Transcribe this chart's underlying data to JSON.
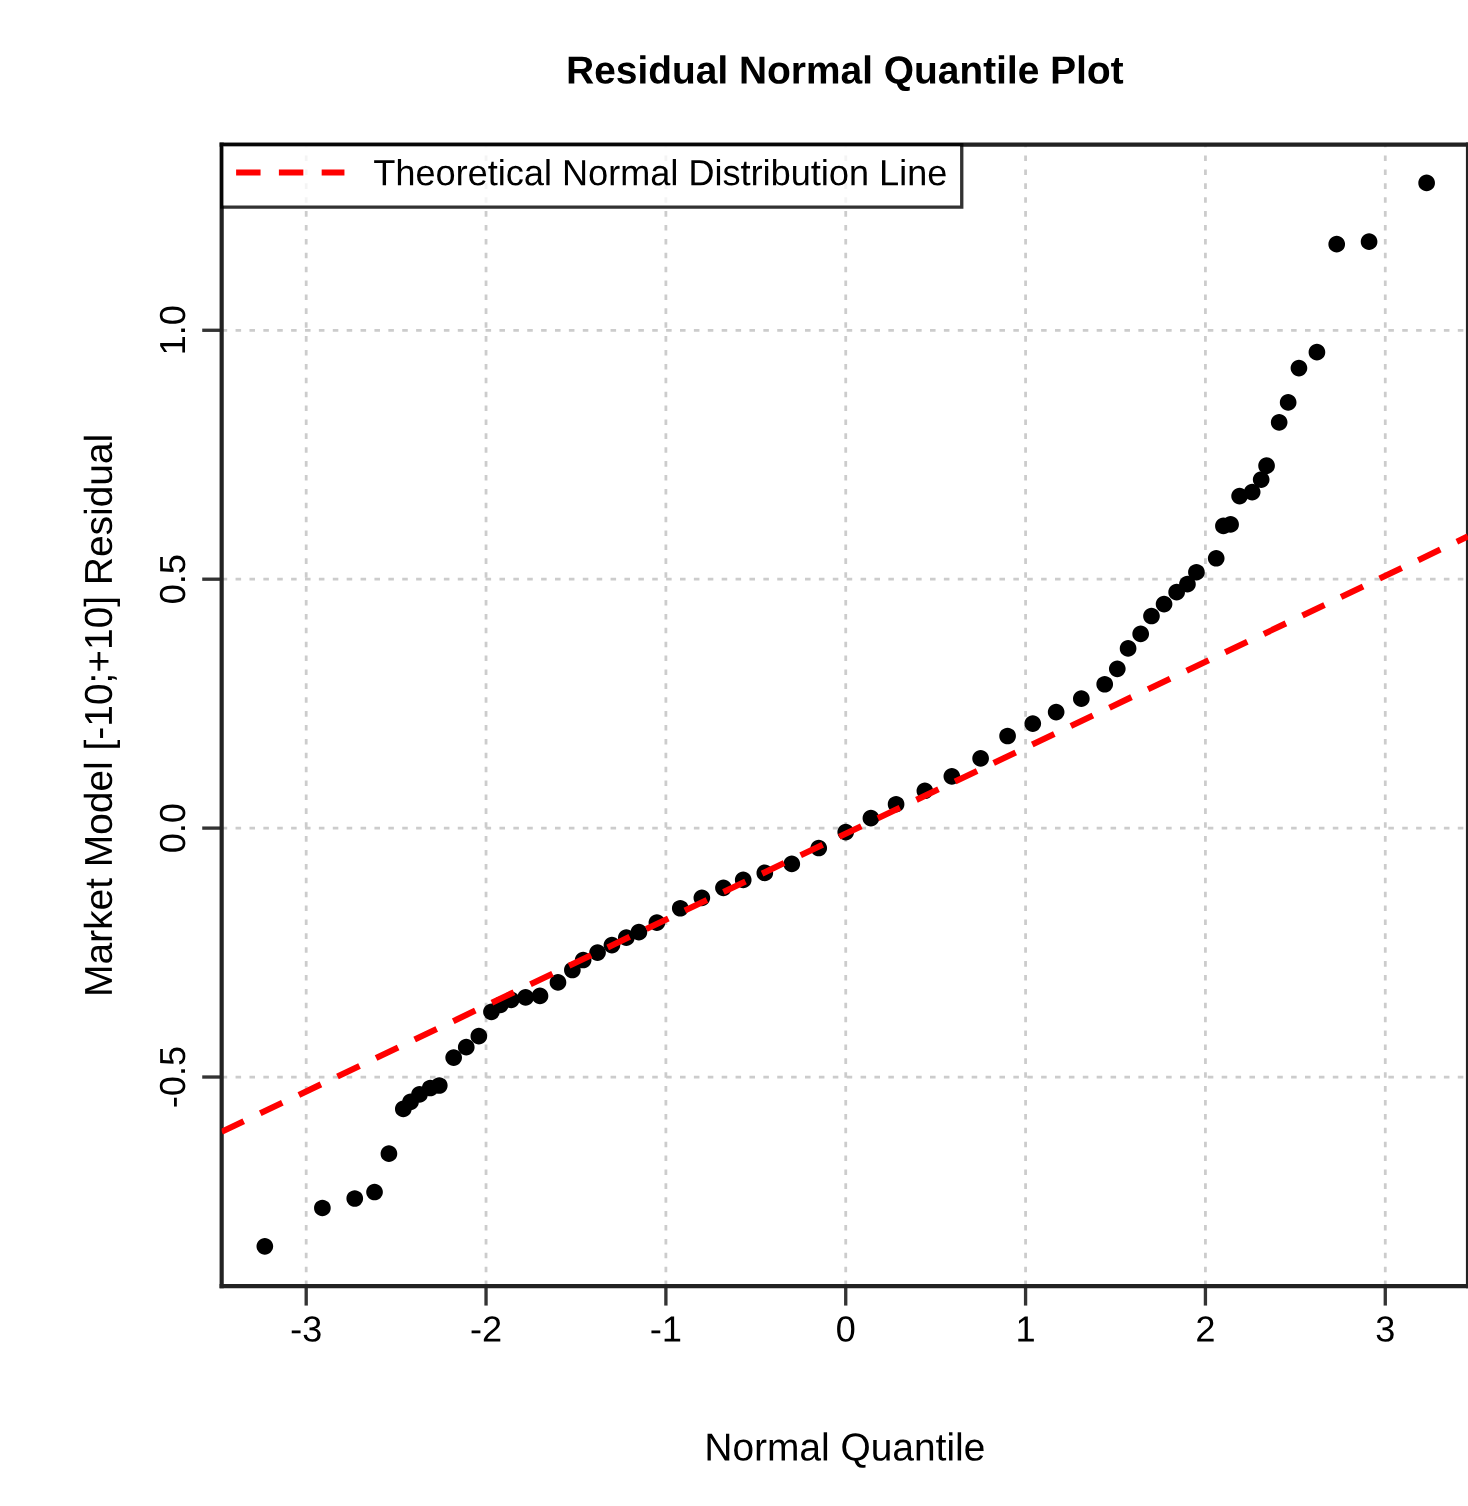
{
  "chart_data": {
    "type": "scatter",
    "title": "Residual Normal Quantile Plot",
    "xlabel": "Normal Quantile",
    "ylabel": "Market Model [-10;+10] Residual",
    "xlim": [
      -3.47,
      3.46
    ],
    "ylim": [
      -0.92,
      1.373
    ],
    "xticks": [
      -3,
      -2,
      -1,
      0,
      1,
      2,
      3
    ],
    "yticks": [
      -0.5,
      {
        "value": 0,
        "label": "0.0"
      },
      0.5,
      {
        "value": 1,
        "label": "1.0"
      }
    ],
    "grid": true,
    "legend": "top left",
    "marker": "circle",
    "series": [
      {
        "color": "#000000",
        "x": [
          -3.23,
          -2.91,
          -2.73,
          -2.62,
          -2.54,
          -2.46,
          -2.42,
          -2.37,
          -2.31,
          -2.26,
          -2.18,
          -2.11,
          -2.04,
          -1.97,
          -1.92,
          -1.86,
          -1.78,
          -1.7,
          -1.6,
          -1.52,
          -1.46,
          -1.38,
          -1.3,
          -1.22,
          -1.15,
          -1.05,
          -0.92,
          -0.8,
          -0.68,
          -0.57,
          -0.45,
          -0.3,
          -0.15,
          0.0,
          0.14,
          0.28,
          0.44,
          0.59,
          0.75,
          0.9,
          1.04,
          1.17,
          1.31,
          1.44,
          1.51,
          1.57,
          1.64,
          1.7,
          1.77,
          1.84,
          1.9,
          1.95,
          2.06,
          2.1,
          2.14,
          2.19,
          2.26,
          2.31,
          2.34,
          2.41,
          2.46,
          2.52,
          2.62,
          2.73,
          2.91,
          3.23
        ],
        "values": [
          -0.84,
          -0.763,
          -0.744,
          -0.731,
          -0.654,
          -0.564,
          -0.55,
          -0.535,
          -0.522,
          -0.517,
          -0.461,
          -0.44,
          -0.418,
          -0.369,
          -0.355,
          -0.345,
          -0.34,
          -0.337,
          -0.31,
          -0.285,
          -0.265,
          -0.25,
          -0.235,
          -0.22,
          -0.209,
          -0.19,
          -0.161,
          -0.14,
          -0.12,
          -0.104,
          -0.09,
          -0.072,
          -0.04,
          -0.008,
          0.02,
          0.048,
          0.075,
          0.104,
          0.14,
          0.185,
          0.21,
          0.233,
          0.26,
          0.289,
          0.32,
          0.361,
          0.39,
          0.426,
          0.45,
          0.474,
          0.49,
          0.514,
          0.542,
          0.607,
          0.61,
          0.667,
          0.675,
          0.7,
          0.728,
          0.815,
          0.855,
          0.924,
          0.956,
          1.173,
          1.178,
          1.296
        ]
      },
      {
        "type": "line",
        "name": "Theoretical Normal Distribution Line",
        "color": "#ff0000",
        "line_style": "dashed",
        "marker": "none",
        "x": [
          -3.47,
          3.46
        ],
        "values": [
          -0.61,
          0.586
        ]
      }
    ]
  }
}
